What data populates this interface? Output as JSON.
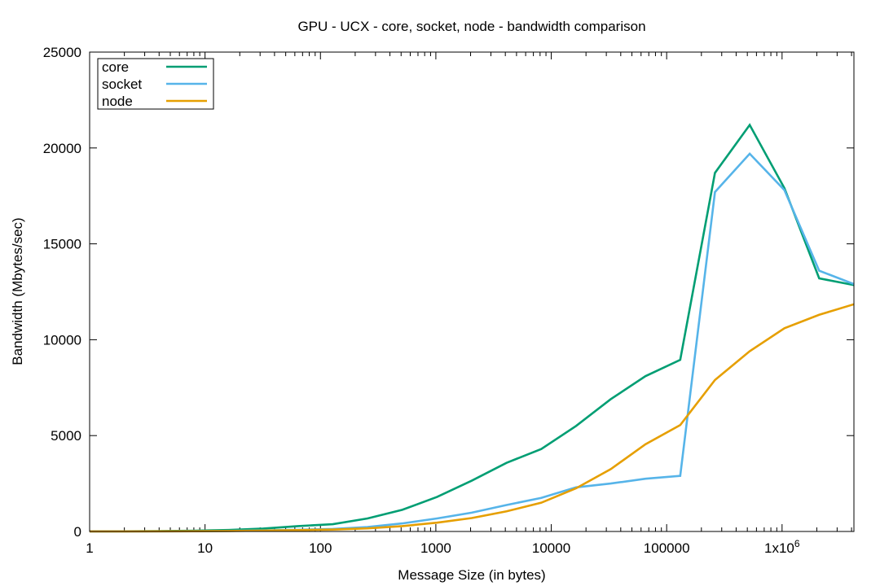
{
  "chart_data": {
    "type": "line",
    "title": "GPU - UCX - core, socket, node - bandwidth comparison",
    "xlabel": "Message Size (in bytes)",
    "ylabel": "Bandwidth (Mbytes/sec)",
    "x_scale": "log2-data-on-log10-axis",
    "xlim": [
      1,
      4194304
    ],
    "ylim": [
      0,
      25000
    ],
    "grid": false,
    "legend_position": "top-left",
    "x_ticks": [
      {
        "value": 1,
        "label": "1"
      },
      {
        "value": 10,
        "label": "10"
      },
      {
        "value": 100,
        "label": "100"
      },
      {
        "value": 1000,
        "label": "1000"
      },
      {
        "value": 10000,
        "label": "10000"
      },
      {
        "value": 100000,
        "label": "100000"
      },
      {
        "value": 1000000,
        "label": "1x10",
        "sup": "6"
      }
    ],
    "y_ticks": [
      {
        "value": 0,
        "label": "0"
      },
      {
        "value": 5000,
        "label": "5000"
      },
      {
        "value": 10000,
        "label": "10000"
      },
      {
        "value": 15000,
        "label": "15000"
      },
      {
        "value": 20000,
        "label": "20000"
      },
      {
        "value": 25000,
        "label": "25000"
      }
    ],
    "x": [
      1,
      2,
      4,
      8,
      16,
      32,
      64,
      128,
      256,
      512,
      1024,
      2048,
      4096,
      8192,
      16384,
      32768,
      65536,
      131072,
      262144,
      524288,
      1048576,
      2097152,
      4194304
    ],
    "series": [
      {
        "name": "core",
        "color": "#009e73",
        "values": [
          5,
          10,
          20,
          40,
          80,
          150,
          280,
          380,
          680,
          1130,
          1800,
          2650,
          3580,
          4300,
          5500,
          6900,
          8100,
          8950,
          18700,
          21200,
          17900,
          13200,
          12850
        ]
      },
      {
        "name": "socket",
        "color": "#56b4e9",
        "values": [
          2,
          4,
          8,
          15,
          30,
          55,
          90,
          130,
          230,
          420,
          680,
          980,
          1380,
          1750,
          2300,
          2500,
          2750,
          2900,
          17700,
          19700,
          17800,
          13600,
          12900
        ]
      },
      {
        "name": "node",
        "color": "#e69f00",
        "values": [
          2,
          4,
          8,
          15,
          25,
          45,
          70,
          100,
          160,
          280,
          460,
          700,
          1050,
          1500,
          2250,
          3250,
          4550,
          5550,
          7900,
          9400,
          10600,
          11300,
          11850
        ]
      }
    ]
  }
}
